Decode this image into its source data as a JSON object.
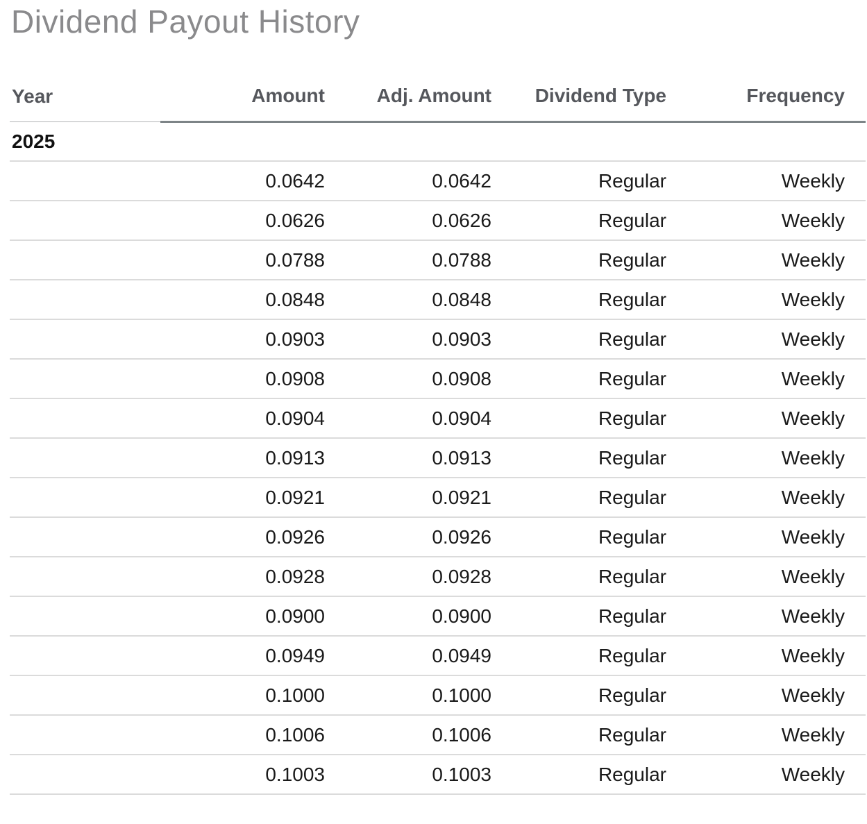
{
  "page": {
    "title": "Dividend Payout History"
  },
  "table": {
    "columns": [
      {
        "label": "Year",
        "align": "left"
      },
      {
        "label": "Amount",
        "align": "right"
      },
      {
        "label": "Adj. Amount",
        "align": "right"
      },
      {
        "label": "Dividend Type",
        "align": "right"
      },
      {
        "label": "Frequency",
        "align": "right"
      }
    ],
    "groups": [
      {
        "year": "2025",
        "rows": [
          {
            "amount": "0.0642",
            "adj_amount": "0.0642",
            "dividend_type": "Regular",
            "frequency": "Weekly"
          },
          {
            "amount": "0.0626",
            "adj_amount": "0.0626",
            "dividend_type": "Regular",
            "frequency": "Weekly"
          },
          {
            "amount": "0.0788",
            "adj_amount": "0.0788",
            "dividend_type": "Regular",
            "frequency": "Weekly"
          },
          {
            "amount": "0.0848",
            "adj_amount": "0.0848",
            "dividend_type": "Regular",
            "frequency": "Weekly"
          },
          {
            "amount": "0.0903",
            "adj_amount": "0.0903",
            "dividend_type": "Regular",
            "frequency": "Weekly"
          },
          {
            "amount": "0.0908",
            "adj_amount": "0.0908",
            "dividend_type": "Regular",
            "frequency": "Weekly"
          },
          {
            "amount": "0.0904",
            "adj_amount": "0.0904",
            "dividend_type": "Regular",
            "frequency": "Weekly"
          },
          {
            "amount": "0.0913",
            "adj_amount": "0.0913",
            "dividend_type": "Regular",
            "frequency": "Weekly"
          },
          {
            "amount": "0.0921",
            "adj_amount": "0.0921",
            "dividend_type": "Regular",
            "frequency": "Weekly"
          },
          {
            "amount": "0.0926",
            "adj_amount": "0.0926",
            "dividend_type": "Regular",
            "frequency": "Weekly"
          },
          {
            "amount": "0.0928",
            "adj_amount": "0.0928",
            "dividend_type": "Regular",
            "frequency": "Weekly"
          },
          {
            "amount": "0.0900",
            "adj_amount": "0.0900",
            "dividend_type": "Regular",
            "frequency": "Weekly"
          },
          {
            "amount": "0.0949",
            "adj_amount": "0.0949",
            "dividend_type": "Regular",
            "frequency": "Weekly"
          },
          {
            "amount": "0.1000",
            "adj_amount": "0.1000",
            "dividend_type": "Regular",
            "frequency": "Weekly"
          },
          {
            "amount": "0.1006",
            "adj_amount": "0.1006",
            "dividend_type": "Regular",
            "frequency": "Weekly"
          },
          {
            "amount": "0.1003",
            "adj_amount": "0.1003",
            "dividend_type": "Regular",
            "frequency": "Weekly"
          }
        ]
      }
    ]
  },
  "colors": {
    "title_text": "#8a8a8c",
    "header_text": "#55575c",
    "body_text": "#1a1a1a",
    "header_rule": "#7d8487",
    "year_header_rule": "#b0b3b5",
    "row_divider": "#dbdbdb"
  }
}
